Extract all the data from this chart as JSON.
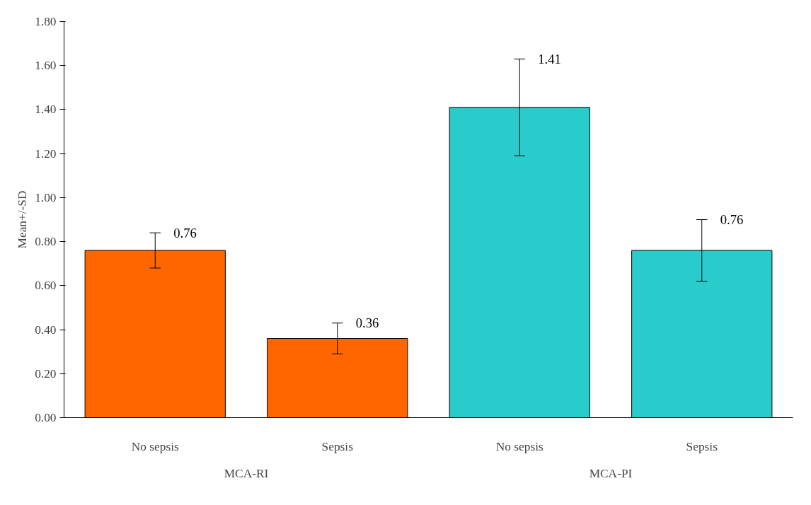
{
  "chart_data": {
    "type": "bar",
    "ylabel": "Mean+/-SD",
    "categories": [
      "No sepsis",
      "Sepsis",
      "No sepsis",
      "Sepsis"
    ],
    "series": [
      {
        "color": "#ff6600",
        "values": [
          0.76,
          0.36,
          null,
          null
        ],
        "errors": [
          0.08,
          0.07,
          null,
          null
        ]
      },
      {
        "color": "#2acbcb",
        "values": [
          null,
          null,
          1.41,
          0.76
        ],
        "errors": [
          null,
          null,
          0.22,
          0.14
        ]
      }
    ],
    "ylim": [
      0,
      1.8
    ],
    "yticks": [
      {
        "value": 0,
        "label": "0.00"
      },
      {
        "value": 0.2,
        "label": "0.20"
      },
      {
        "value": 0.4,
        "label": "0.40"
      },
      {
        "value": 0.6,
        "label": "0.60"
      },
      {
        "value": 0.8,
        "label": "0.80"
      },
      {
        "value": 1.0,
        "label": "1.00"
      },
      {
        "value": 1.2,
        "label": "1.20"
      },
      {
        "value": 1.4,
        "label": "1.40"
      },
      {
        "value": 1.6,
        "label": "1.60"
      },
      {
        "value": 1.8,
        "label": "1.80"
      }
    ],
    "annotations": [
      "MCA-RI",
      "MCA-PI"
    ],
    "data_labels": true,
    "grid": false
  }
}
